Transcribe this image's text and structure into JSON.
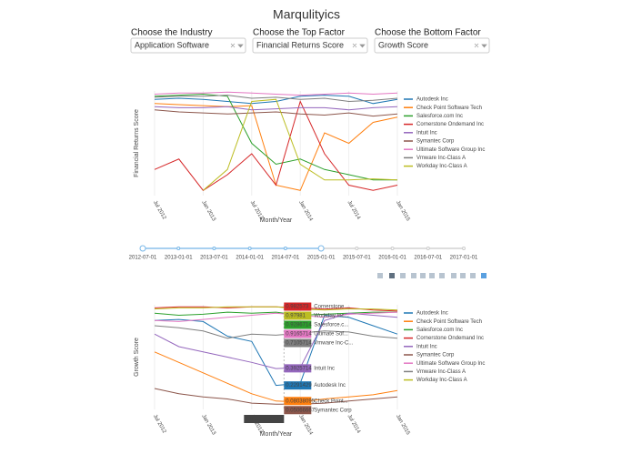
{
  "header": {
    "title": "Marqulityics"
  },
  "controls": [
    {
      "label": "Choose the Industry",
      "value": "Application Software"
    },
    {
      "label": "Choose the Top Factor",
      "value": "Financial Returns Score"
    },
    {
      "label": "Choose the Bottom Factor",
      "value": "Growth Score"
    }
  ],
  "slider": {
    "steps": [
      "2012-07-01",
      "2013-01-01",
      "2013-07-01",
      "2014-01-01",
      "2014-07-01",
      "2015-01-01",
      "2015-07-01",
      "2016-01-01",
      "2016-07-01",
      "2017-01-01"
    ]
  },
  "chart_data": [
    {
      "type": "line",
      "y_label": "Financial Returns Score",
      "x_label": "Month/Year",
      "x": [
        "Jul 2012",
        null,
        "Jan 2013",
        null,
        "Jul 2013",
        null,
        "Jan 2014",
        null,
        "Jul 2014",
        null,
        "Jan 2015"
      ],
      "ylim": [
        0,
        1
      ],
      "series": [
        {
          "name": "Autodesk Inc",
          "color": "#1f77b4",
          "values": [
            0.92,
            0.93,
            0.92,
            0.9,
            0.88,
            0.9,
            0.95,
            0.96,
            0.95,
            0.88,
            0.92
          ]
        },
        {
          "name": "Check Point Software Tech",
          "color": "#ff7f0e",
          "values": [
            0.88,
            0.87,
            0.86,
            0.85,
            0.86,
            0.1,
            0.05,
            0.6,
            0.5,
            0.7,
            0.75
          ]
        },
        {
          "name": "Salesforce.com Inc",
          "color": "#2ca02c",
          "values": [
            0.95,
            0.96,
            0.97,
            0.95,
            0.5,
            0.3,
            0.35,
            0.25,
            0.2,
            0.15,
            0.15
          ]
        },
        {
          "name": "Cornerstone Ondemand Inc",
          "color": "#d62728",
          "values": [
            0.25,
            0.35,
            0.05,
            0.2,
            0.4,
            0.1,
            0.9,
            0.4,
            0.1,
            0.05,
            0.1
          ]
        },
        {
          "name": "Intuit Inc",
          "color": "#9467bd",
          "values": [
            0.85,
            0.84,
            0.84,
            0.85,
            0.82,
            0.83,
            0.84,
            0.84,
            0.82,
            0.84,
            0.85
          ]
        },
        {
          "name": "Symantec Corp",
          "color": "#8c564b",
          "values": [
            0.82,
            0.8,
            0.79,
            0.78,
            0.79,
            0.8,
            0.78,
            0.77,
            0.79,
            0.76,
            0.78
          ]
        },
        {
          "name": "Ultimate Software Group Inc",
          "color": "#e377c2",
          "values": [
            0.97,
            0.98,
            0.98,
            0.99,
            0.98,
            0.97,
            0.96,
            0.97,
            0.98,
            0.97,
            0.98
          ]
        },
        {
          "name": "Vmware Inc-Class A",
          "color": "#7f7f7f",
          "values": [
            0.94,
            0.95,
            0.95,
            0.96,
            0.93,
            0.94,
            0.92,
            0.93,
            0.9,
            0.91,
            0.93
          ]
        },
        {
          "name": "Workday Inc-Class A",
          "color": "#bcbd22",
          "values": [
            null,
            null,
            0.05,
            0.25,
            0.9,
            0.92,
            0.3,
            0.15,
            0.15,
            0.16,
            0.15
          ]
        }
      ]
    },
    {
      "type": "line",
      "y_label": "Growth Score",
      "x_label": "Month/Year",
      "x": [
        "Jul 2012",
        null,
        "Jan 2013",
        null,
        "Jul 2013",
        null,
        "Jan 2014",
        null,
        "Jul 2014",
        null,
        "Jan 2015"
      ],
      "ylim": [
        0,
        1
      ],
      "series": [
        {
          "name": "Autodesk Inc",
          "color": "#1f77b4",
          "values": [
            0.85,
            0.86,
            0.84,
            0.7,
            0.65,
            0.23,
            0.25,
            0.9,
            0.88,
            0.8,
            0.72
          ]
        },
        {
          "name": "Check Point Software Tech",
          "color": "#ff7f0e",
          "values": [
            0.55,
            0.45,
            0.35,
            0.25,
            0.15,
            0.08,
            0.07,
            0.1,
            0.12,
            0.14,
            0.18
          ]
        },
        {
          "name": "Salesforce.com Inc",
          "color": "#2ca02c",
          "values": [
            0.92,
            0.9,
            0.91,
            0.93,
            0.92,
            0.93,
            0.9,
            0.91,
            0.92,
            0.93,
            0.93
          ]
        },
        {
          "name": "Cornerstone Ondemand Inc",
          "color": "#d62728",
          "values": [
            0.97,
            0.98,
            0.98,
            0.97,
            0.98,
            0.98,
            0.97,
            0.96,
            0.97,
            0.95,
            0.94
          ]
        },
        {
          "name": "Intuit Inc",
          "color": "#9467bd",
          "values": [
            0.72,
            0.6,
            0.55,
            0.5,
            0.45,
            0.39,
            0.4,
            0.85,
            0.92,
            0.9,
            0.88
          ]
        },
        {
          "name": "Symantec Corp",
          "color": "#8c564b",
          "values": [
            0.2,
            0.15,
            0.12,
            0.1,
            0.06,
            0.05,
            0.05,
            0.06,
            0.08,
            0.1,
            0.12
          ]
        },
        {
          "name": "Ultimate Software Group Inc",
          "color": "#e377c2",
          "values": [
            0.85,
            0.84,
            0.86,
            0.88,
            0.9,
            0.92,
            0.9,
            0.88,
            0.91,
            0.92,
            0.93
          ]
        },
        {
          "name": "Vmware Inc-Class A",
          "color": "#7f7f7f",
          "values": [
            0.8,
            0.78,
            0.75,
            0.68,
            0.72,
            0.71,
            0.73,
            0.75,
            0.74,
            0.7,
            0.68
          ]
        },
        {
          "name": "Workday Inc-Class A",
          "color": "#bcbd22",
          "values": [
            0.96,
            0.97,
            0.97,
            0.98,
            0.98,
            0.98,
            0.96,
            0.95,
            0.96,
            0.96,
            0.95
          ]
        }
      ],
      "hover": {
        "x_label": "Nov 1, 2013",
        "items": [
          {
            "value": 0.982573,
            "label": "Cornerstone ...",
            "color": "#d62728"
          },
          {
            "value": 0.97981,
            "label": "Workday Inc...",
            "color": "#bcbd22"
          },
          {
            "value": 0.9286714,
            "label": "Salesforce.c...",
            "color": "#2ca02c"
          },
          {
            "value": 0.9165714,
            "label": "Ultimate Sof...",
            "color": "#e377c2"
          },
          {
            "value": 0.7105714,
            "label": "Vmware Inc-C...",
            "color": "#7f7f7f"
          },
          {
            "value": 0.3925714,
            "label": "Intuit Inc",
            "color": "#9467bd"
          },
          {
            "value": 0.2291429,
            "label": "Autodesk Inc",
            "color": "#1f77b4"
          },
          {
            "value": 0.08038095,
            "label": "Check Point...",
            "color": "#ff7f0e"
          },
          {
            "value": 0.05066667,
            "label": "Symantec Corp",
            "color": "#8c564b"
          }
        ]
      }
    }
  ]
}
